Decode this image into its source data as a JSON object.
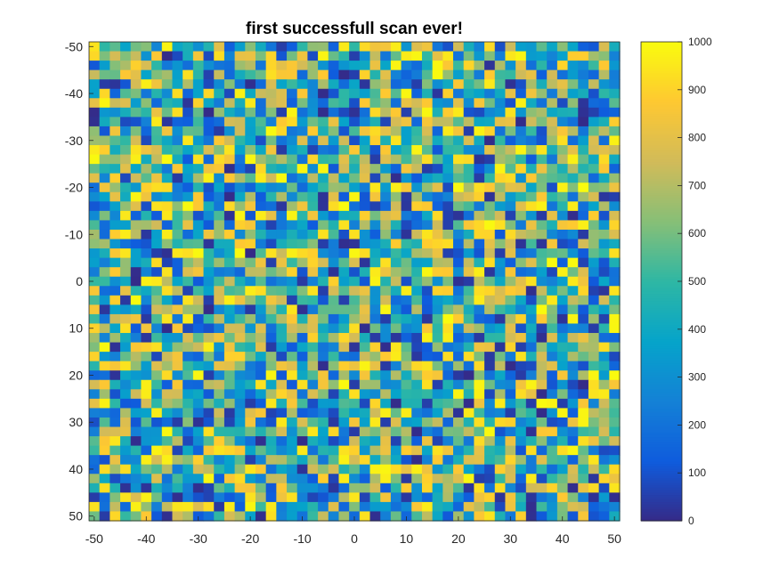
{
  "chart_data": {
    "type": "heatmap",
    "title": "first successfull scan ever!",
    "xlabel": "",
    "ylabel": "",
    "x_range": [
      -50,
      50
    ],
    "y_range": [
      -50,
      50
    ],
    "y_direction": "reversed",
    "x_ticks": [
      "-50",
      "-40",
      "-30",
      "-20",
      "-10",
      "0",
      "10",
      "20",
      "30",
      "40",
      "50"
    ],
    "y_ticks": [
      "-50",
      "-40",
      "-30",
      "-20",
      "-10",
      "0",
      "10",
      "20",
      "30",
      "40",
      "50"
    ],
    "grid_cols": 51,
    "grid_rows": 51,
    "value_distribution": "uniform random noise",
    "value_range": [
      0,
      1000
    ],
    "colorbar": {
      "placement": "right",
      "range": [
        0,
        1000
      ],
      "ticks": [
        "0",
        "100",
        "200",
        "300",
        "400",
        "500",
        "600",
        "700",
        "800",
        "900",
        "1000"
      ],
      "colormap": "parula",
      "colors": [
        "#352a87",
        "#0f5cdd",
        "#1481d6",
        "#06a4ca",
        "#2eb7a4",
        "#87bf77",
        "#d1bb59",
        "#fec832",
        "#f9fb0e"
      ]
    },
    "grid": false
  }
}
